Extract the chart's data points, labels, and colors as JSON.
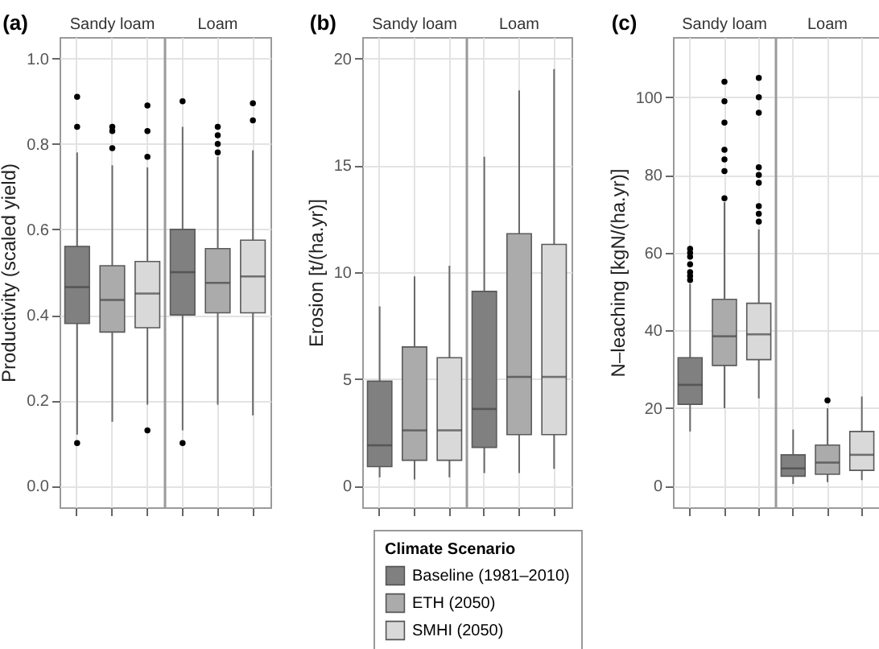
{
  "chart_data": [
    {
      "type": "box",
      "title": "(a)",
      "annotations": [
        "Sandy loam",
        "Loam"
      ],
      "ylabel": "Productivity (scaled yield)",
      "categories": [
        null,
        null,
        null,
        null,
        null,
        null
      ],
      "ylim": [
        -0.05,
        1.05
      ],
      "yticks": [
        {
          "value": 0,
          "label": "0.0"
        },
        {
          "value": 0.2,
          "label": "0.2"
        },
        {
          "value": 0.4,
          "label": "0.4"
        },
        {
          "value": 0.6,
          "label": "0.6"
        },
        {
          "value": 0.8,
          "label": "0.8"
        },
        {
          "value": 1,
          "label": "1.0"
        }
      ],
      "grid": true,
      "tick_labels": "y",
      "series": [
        {
          "color": "#808080",
          "boxes": [
            {
              "low": 0.12,
              "q1": 0.38,
              "median": 0.465,
              "q3": 0.56,
              "high": 0.78,
              "outliers": [
                0.1,
                0.84,
                0.91
              ]
            },
            null,
            null,
            {
              "low": 0.13,
              "q1": 0.4,
              "median": 0.5,
              "q3": 0.6,
              "high": 0.84,
              "outliers": [
                0.1,
                0.9
              ]
            },
            null,
            null
          ]
        },
        {
          "color": "#ababab",
          "boxes": [
            null,
            {
              "low": 0.15,
              "q1": 0.36,
              "median": 0.435,
              "q3": 0.515,
              "high": 0.75,
              "outliers": [
                0.79,
                0.83,
                0.84
              ]
            },
            null,
            null,
            {
              "low": 0.19,
              "q1": 0.405,
              "median": 0.475,
              "q3": 0.555,
              "high": 0.77,
              "outliers": [
                0.78,
                0.8,
                0.82,
                0.84
              ]
            },
            null
          ]
        },
        {
          "color": "#d9d9d9",
          "boxes": [
            null,
            null,
            {
              "low": 0.19,
              "q1": 0.37,
              "median": 0.45,
              "q3": 0.525,
              "high": 0.745,
              "outliers": [
                0.13,
                0.77,
                0.83,
                0.89
              ]
            },
            null,
            null,
            {
              "low": 0.165,
              "q1": 0.405,
              "median": 0.49,
              "q3": 0.575,
              "high": 0.785,
              "outliers": [
                0.855,
                0.895
              ]
            }
          ]
        }
      ]
    },
    {
      "type": "box",
      "title": "(b)",
      "annotations": [
        "Sandy loam",
        "Loam"
      ],
      "ylabel": "Erosion [t/(ha.yr)]",
      "categories": [
        null,
        null,
        null,
        null,
        null,
        null
      ],
      "ylim": [
        -1,
        21
      ],
      "yticks": [
        0,
        5,
        10,
        15,
        20
      ],
      "grid": true,
      "tick_labels": "y",
      "legend": "bottom",
      "legend_title": "Climate Scenario",
      "series": [
        {
          "name": "Baseline (1981–2010)",
          "color": "#808080",
          "boxes": [
            {
              "low": 0.4,
              "q1": 0.9,
              "median": 1.9,
              "q3": 4.9,
              "high": 8.4
            },
            null,
            null,
            {
              "low": 0.6,
              "q1": 1.8,
              "median": 3.6,
              "q3": 9.1,
              "high": 15.4
            },
            null,
            null
          ]
        },
        {
          "name": "ETH (2050)",
          "color": "#ababab",
          "boxes": [
            null,
            {
              "low": 0.3,
              "q1": 1.2,
              "median": 2.6,
              "q3": 6.5,
              "high": 9.8
            },
            null,
            null,
            {
              "low": 0.6,
              "q1": 2.4,
              "median": 5.1,
              "q3": 11.8,
              "high": 18.5
            },
            null
          ]
        },
        {
          "name": "SMHI (2050)",
          "color": "#d9d9d9",
          "boxes": [
            null,
            null,
            {
              "low": 0.4,
              "q1": 1.2,
              "median": 2.6,
              "q3": 6.0,
              "high": 10.3
            },
            null,
            null,
            {
              "low": 0.8,
              "q1": 2.4,
              "median": 5.1,
              "q3": 11.3,
              "high": 19.5
            }
          ]
        }
      ]
    },
    {
      "type": "box",
      "title": "(c)",
      "annotations": [
        "Sandy loam",
        "Loam"
      ],
      "ylabel": "N–leaching [kgN/(ha.yr)]",
      "categories": [
        null,
        null,
        null,
        null,
        null,
        null
      ],
      "ylim": [
        -5.5,
        115.5
      ],
      "yticks": [
        0,
        20,
        40,
        60,
        80,
        100
      ],
      "grid": true,
      "tick_labels": "y",
      "series": [
        {
          "color": "#808080",
          "boxes": [
            {
              "low": 14,
              "q1": 21,
              "median": 26,
              "q3": 33,
              "high": 52,
              "outliers": [
                53,
                54,
                55,
                57,
                59,
                60,
                61
              ]
            },
            null,
            null,
            {
              "low": 0.5,
              "q1": 2.5,
              "median": 4.5,
              "q3": 8,
              "high": 14.5
            },
            null,
            null
          ]
        },
        {
          "color": "#ababab",
          "boxes": [
            null,
            {
              "low": 20,
              "q1": 31,
              "median": 38.5,
              "q3": 48,
              "high": 73,
              "outliers": [
                74,
                81,
                84,
                86.5,
                93.5,
                99,
                104
              ]
            },
            null,
            null,
            {
              "low": 1,
              "q1": 3,
              "median": 6,
              "q3": 10.5,
              "high": 20,
              "outliers": [
                22
              ]
            },
            null
          ]
        },
        {
          "color": "#d9d9d9",
          "boxes": [
            null,
            null,
            {
              "low": 22.5,
              "q1": 32.5,
              "median": 39,
              "q3": 47,
              "high": 66,
              "outliers": [
                68,
                70,
                72,
                78,
                80,
                82,
                96,
                100,
                105
              ]
            },
            null,
            null,
            {
              "low": 1.5,
              "q1": 4,
              "median": 8,
              "q3": 14,
              "high": 23
            }
          ]
        }
      ]
    }
  ]
}
